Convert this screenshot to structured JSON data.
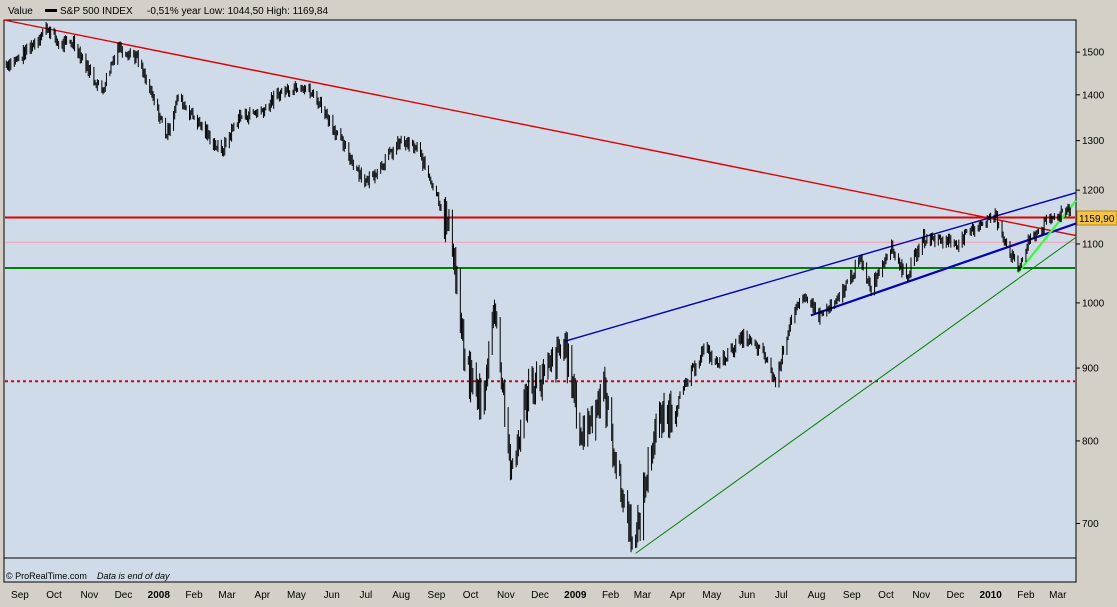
{
  "header": {
    "value_label": "Value",
    "series_name": "S&P 500 INDEX",
    "stats": "-0,51%  year Low: 1044,50 High: 1169,84"
  },
  "footer": {
    "credit": "© ProRealTime.com",
    "credit_note": "Data is end of day"
  },
  "colors": {
    "plot_bg": "#cfdbe8",
    "price": "#000000",
    "red_line": "#e00000",
    "blue_line": "#0000c0",
    "green_line": "#008000",
    "lime_line": "#33ff33",
    "last_badge": "#f5c542"
  },
  "chart_data": {
    "type": "line",
    "title": "S&P 500 INDEX",
    "y_axis": {
      "scale": "log",
      "range": [
        662,
        1580
      ],
      "ticks": [
        700,
        800,
        900,
        1000,
        1100,
        1200,
        1300,
        1400,
        1500
      ],
      "position": "right"
    },
    "x_axis": {
      "range": [
        "2007-09-01",
        "2010-03-31"
      ],
      "ticks": [
        {
          "label": "Sep",
          "date": "2007-09-15"
        },
        {
          "label": "Oct",
          "date": "2007-10-15"
        },
        {
          "label": "Nov",
          "date": "2007-11-15"
        },
        {
          "label": "Dec",
          "date": "2007-12-15"
        },
        {
          "label": "2008",
          "date": "2008-01-15",
          "bold": true
        },
        {
          "label": "Feb",
          "date": "2008-02-15"
        },
        {
          "label": "Mar",
          "date": "2008-03-15"
        },
        {
          "label": "Apr",
          "date": "2008-04-15"
        },
        {
          "label": "May",
          "date": "2008-05-15"
        },
        {
          "label": "Jun",
          "date": "2008-06-15"
        },
        {
          "label": "Jul",
          "date": "2008-07-15"
        },
        {
          "label": "Aug",
          "date": "2008-08-15"
        },
        {
          "label": "Sep",
          "date": "2008-09-15"
        },
        {
          "label": "Oct",
          "date": "2008-10-15"
        },
        {
          "label": "Nov",
          "date": "2008-11-15"
        },
        {
          "label": "Dec",
          "date": "2008-12-15"
        },
        {
          "label": "2009",
          "date": "2009-01-15",
          "bold": true
        },
        {
          "label": "Feb",
          "date": "2009-02-15"
        },
        {
          "label": "Mar",
          "date": "2009-03-15"
        },
        {
          "label": "Apr",
          "date": "2009-04-15"
        },
        {
          "label": "May",
          "date": "2009-05-15"
        },
        {
          "label": "Jun",
          "date": "2009-06-15"
        },
        {
          "label": "Jul",
          "date": "2009-07-15"
        },
        {
          "label": "Aug",
          "date": "2009-08-15"
        },
        {
          "label": "Sep",
          "date": "2009-09-15"
        },
        {
          "label": "Oct",
          "date": "2009-10-15"
        },
        {
          "label": "Nov",
          "date": "2009-11-15"
        },
        {
          "label": "Dec",
          "date": "2009-12-15"
        },
        {
          "label": "2010",
          "date": "2010-01-15",
          "bold": true
        },
        {
          "label": "Feb",
          "date": "2010-02-15"
        },
        {
          "label": "Mar",
          "date": "2010-03-15"
        }
      ]
    },
    "series": [
      {
        "name": "S&P 500 INDEX",
        "points": [
          [
            "2007-09-01",
            1470
          ],
          [
            "2007-09-15",
            1485
          ],
          [
            "2007-10-01",
            1535
          ],
          [
            "2007-10-09",
            1562
          ],
          [
            "2007-10-20",
            1515
          ],
          [
            "2007-11-01",
            1525
          ],
          [
            "2007-11-15",
            1455
          ],
          [
            "2007-11-26",
            1408
          ],
          [
            "2007-12-10",
            1515
          ],
          [
            "2007-12-26",
            1490
          ],
          [
            "2008-01-08",
            1402
          ],
          [
            "2008-01-22",
            1312
          ],
          [
            "2008-02-01",
            1395
          ],
          [
            "2008-02-15",
            1350
          ],
          [
            "2008-03-10",
            1275
          ],
          [
            "2008-03-25",
            1350
          ],
          [
            "2008-04-15",
            1365
          ],
          [
            "2008-05-01",
            1405
          ],
          [
            "2008-05-19",
            1426
          ],
          [
            "2008-06-05",
            1380
          ],
          [
            "2008-06-27",
            1280
          ],
          [
            "2008-07-15",
            1215
          ],
          [
            "2008-08-01",
            1260
          ],
          [
            "2008-08-15",
            1298
          ],
          [
            "2008-08-29",
            1282
          ],
          [
            "2008-09-15",
            1195
          ],
          [
            "2008-09-29",
            1106
          ],
          [
            "2008-10-10",
            900
          ],
          [
            "2008-10-27",
            848
          ],
          [
            "2008-11-04",
            1005
          ],
          [
            "2008-11-20",
            752
          ],
          [
            "2008-12-05",
            875
          ],
          [
            "2008-12-19",
            887
          ],
          [
            "2009-01-06",
            935
          ],
          [
            "2009-01-20",
            805
          ],
          [
            "2009-02-09",
            870
          ],
          [
            "2009-02-23",
            743
          ],
          [
            "2009-03-09",
            676
          ],
          [
            "2009-03-26",
            815
          ],
          [
            "2009-04-15",
            852
          ],
          [
            "2009-05-08",
            929
          ],
          [
            "2009-05-20",
            905
          ],
          [
            "2009-06-12",
            946
          ],
          [
            "2009-06-30",
            919
          ],
          [
            "2009-07-10",
            879
          ],
          [
            "2009-07-24",
            979
          ],
          [
            "2009-08-07",
            1010
          ],
          [
            "2009-08-17",
            979
          ],
          [
            "2009-09-01",
            998
          ],
          [
            "2009-09-22",
            1071
          ],
          [
            "2009-10-02",
            1025
          ],
          [
            "2009-10-19",
            1097
          ],
          [
            "2009-11-02",
            1042
          ],
          [
            "2009-11-17",
            1110
          ],
          [
            "2009-12-01",
            1108
          ],
          [
            "2009-12-18",
            1102
          ],
          [
            "2010-01-05",
            1137
          ],
          [
            "2010-01-19",
            1150
          ],
          [
            "2010-02-05",
            1066
          ],
          [
            "2010-02-08",
            1056
          ],
          [
            "2010-02-19",
            1109
          ],
          [
            "2010-03-05",
            1138
          ],
          [
            "2010-03-19",
            1159
          ],
          [
            "2010-03-26",
            1168
          ]
        ]
      }
    ],
    "trendlines": [
      {
        "type": "segment",
        "color": "red",
        "from": [
          "2007-09-01",
          1580
        ],
        "to": [
          "2010-03-31",
          1115
        ]
      },
      {
        "type": "horizontal",
        "color": "red",
        "value": 1148
      },
      {
        "type": "horizontal",
        "color": "pink",
        "value": 1103
      },
      {
        "type": "horizontal",
        "color": "green",
        "value": 1058
      },
      {
        "type": "horizontal",
        "color": "red",
        "style": "dotted",
        "value": 881
      },
      {
        "type": "segment",
        "color": "blue",
        "from": [
          "2009-01-06",
          940
        ],
        "to": [
          "2010-03-31",
          1195
        ]
      },
      {
        "type": "segment",
        "color": "blue",
        "bold": true,
        "from": [
          "2009-08-10",
          980
        ],
        "to": [
          "2010-03-31",
          1137
        ]
      },
      {
        "type": "segment",
        "color": "green",
        "from": [
          "2009-03-09",
          667
        ],
        "to": [
          "2010-03-31",
          1112
        ]
      },
      {
        "type": "segment",
        "color": "lime",
        "bold": true,
        "from": [
          "2010-02-08",
          1050
        ],
        "to": [
          "2010-03-31",
          1180
        ]
      }
    ],
    "last_value": {
      "value": 1159.9,
      "label": "1159,90"
    }
  }
}
